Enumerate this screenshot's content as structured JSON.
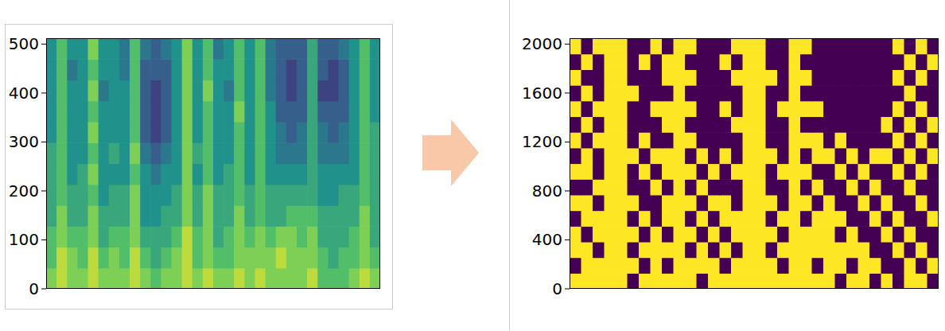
{
  "chart_data": [
    {
      "type": "heatmap",
      "color": "viridis",
      "tick_labels": "y",
      "ylim": [
        0,
        512
      ],
      "yticks": [
        0,
        100,
        200,
        300,
        400,
        500
      ],
      "cells": [
        [
          0.8,
          0.9,
          0.8,
          0.8,
          0.9,
          0.8,
          0.8,
          0.8,
          0.9,
          0.8,
          0.7,
          0.8,
          0.8,
          0.9,
          0.8,
          0.9,
          0.8,
          0.8,
          0.9,
          0.8,
          0.9,
          0.8,
          0.8,
          0.8,
          0.8,
          0.9,
          0.7,
          0.7,
          0.7,
          0.8,
          0.9,
          0.8
        ],
        [
          0.7,
          0.9,
          0.8,
          0.7,
          0.9,
          0.7,
          0.8,
          0.7,
          0.9,
          0.7,
          0.6,
          0.7,
          0.8,
          0.9,
          0.7,
          0.8,
          0.7,
          0.7,
          0.8,
          0.8,
          0.8,
          0.8,
          0.9,
          0.8,
          0.8,
          0.8,
          0.7,
          0.6,
          0.7,
          0.7,
          0.8,
          0.7
        ],
        [
          0.7,
          0.8,
          0.7,
          0.7,
          0.8,
          0.6,
          0.7,
          0.7,
          0.8,
          0.6,
          0.6,
          0.6,
          0.7,
          0.9,
          0.7,
          0.8,
          0.6,
          0.7,
          0.8,
          0.7,
          0.8,
          0.7,
          0.8,
          0.8,
          0.7,
          0.8,
          0.6,
          0.6,
          0.6,
          0.7,
          0.8,
          0.6
        ],
        [
          0.6,
          0.8,
          0.6,
          0.6,
          0.8,
          0.6,
          0.6,
          0.6,
          0.8,
          0.5,
          0.5,
          0.6,
          0.6,
          0.8,
          0.6,
          0.8,
          0.6,
          0.6,
          0.8,
          0.6,
          0.7,
          0.6,
          0.6,
          0.7,
          0.7,
          0.7,
          0.6,
          0.6,
          0.6,
          0.6,
          0.8,
          0.6
        ],
        [
          0.6,
          0.7,
          0.6,
          0.6,
          0.7,
          0.5,
          0.6,
          0.6,
          0.8,
          0.5,
          0.5,
          0.5,
          0.6,
          0.8,
          0.6,
          0.8,
          0.6,
          0.6,
          0.7,
          0.6,
          0.7,
          0.6,
          0.6,
          0.6,
          0.6,
          0.6,
          0.5,
          0.5,
          0.6,
          0.6,
          0.7,
          0.6
        ],
        [
          0.6,
          0.7,
          0.5,
          0.6,
          0.8,
          0.5,
          0.5,
          0.5,
          0.7,
          0.5,
          0.4,
          0.5,
          0.5,
          0.8,
          0.5,
          0.7,
          0.5,
          0.6,
          0.7,
          0.5,
          0.7,
          0.5,
          0.5,
          0.5,
          0.5,
          0.6,
          0.5,
          0.5,
          0.5,
          0.5,
          0.7,
          0.6
        ],
        [
          0.6,
          0.7,
          0.5,
          0.5,
          0.7,
          0.5,
          0.6,
          0.5,
          0.8,
          0.4,
          0.3,
          0.4,
          0.5,
          0.8,
          0.6,
          0.7,
          0.5,
          0.5,
          0.7,
          0.5,
          0.7,
          0.5,
          0.4,
          0.4,
          0.4,
          0.6,
          0.4,
          0.4,
          0.4,
          0.5,
          0.7,
          0.6
        ],
        [
          0.5,
          0.7,
          0.5,
          0.5,
          0.8,
          0.5,
          0.5,
          0.5,
          0.7,
          0.3,
          0.2,
          0.3,
          0.5,
          0.8,
          0.5,
          0.7,
          0.5,
          0.5,
          0.7,
          0.5,
          0.7,
          0.5,
          0.4,
          0.3,
          0.4,
          0.6,
          0.4,
          0.3,
          0.4,
          0.5,
          0.7,
          0.6
        ],
        [
          0.5,
          0.7,
          0.5,
          0.5,
          0.7,
          0.5,
          0.5,
          0.5,
          0.7,
          0.3,
          0.2,
          0.3,
          0.5,
          0.8,
          0.5,
          0.7,
          0.5,
          0.5,
          0.8,
          0.5,
          0.7,
          0.5,
          0.3,
          0.3,
          0.3,
          0.6,
          0.3,
          0.3,
          0.3,
          0.5,
          0.7,
          0.5
        ],
        [
          0.5,
          0.7,
          0.5,
          0.5,
          0.8,
          0.4,
          0.5,
          0.5,
          0.7,
          0.3,
          0.2,
          0.3,
          0.5,
          0.8,
          0.5,
          0.8,
          0.5,
          0.4,
          0.7,
          0.5,
          0.7,
          0.4,
          0.3,
          0.2,
          0.3,
          0.6,
          0.2,
          0.2,
          0.3,
          0.5,
          0.7,
          0.5
        ],
        [
          0.5,
          0.7,
          0.4,
          0.5,
          0.7,
          0.5,
          0.5,
          0.4,
          0.7,
          0.3,
          0.3,
          0.3,
          0.5,
          0.8,
          0.5,
          0.7,
          0.5,
          0.5,
          0.7,
          0.5,
          0.7,
          0.4,
          0.3,
          0.2,
          0.3,
          0.6,
          0.3,
          0.2,
          0.3,
          0.5,
          0.7,
          0.5
        ],
        [
          0.5,
          0.7,
          0.5,
          0.5,
          0.8,
          0.5,
          0.5,
          0.4,
          0.7,
          0.4,
          0.3,
          0.4,
          0.5,
          0.8,
          0.5,
          0.7,
          0.4,
          0.5,
          0.7,
          0.5,
          0.7,
          0.4,
          0.3,
          0.3,
          0.3,
          0.6,
          0.3,
          0.3,
          0.4,
          0.5,
          0.7,
          0.5
        ]
      ]
    },
    {
      "type": "heatmap",
      "color": "viridis",
      "tick_labels": "y",
      "ylim": [
        0,
        2048
      ],
      "yticks": [
        0,
        400,
        800,
        1200,
        1600,
        2000
      ],
      "cells": [
        [
          1,
          1,
          1,
          1,
          1,
          0,
          1,
          1,
          1,
          1,
          1,
          0,
          1,
          1,
          1,
          1,
          1,
          1,
          1,
          1,
          1,
          1,
          1,
          0,
          1,
          1,
          0,
          1,
          0,
          1,
          1,
          0
        ],
        [
          0,
          1,
          1,
          1,
          1,
          1,
          0,
          1,
          0,
          1,
          1,
          1,
          1,
          0,
          1,
          1,
          1,
          1,
          0,
          1,
          1,
          0,
          1,
          1,
          0,
          1,
          1,
          0,
          0,
          1,
          0,
          1
        ],
        [
          1,
          1,
          0,
          1,
          1,
          0,
          1,
          1,
          1,
          1,
          0,
          1,
          0,
          1,
          0,
          1,
          1,
          0,
          1,
          1,
          1,
          1,
          1,
          1,
          1,
          1,
          0,
          0,
          1,
          0,
          1,
          0
        ],
        [
          1,
          0,
          1,
          1,
          1,
          1,
          0,
          1,
          0,
          1,
          1,
          0,
          1,
          0,
          1,
          1,
          1,
          1,
          0,
          1,
          1,
          1,
          1,
          0,
          1,
          0,
          0,
          1,
          0,
          1,
          0,
          0
        ],
        [
          0,
          1,
          1,
          1,
          1,
          0,
          1,
          0,
          1,
          1,
          0,
          1,
          0,
          1,
          1,
          1,
          1,
          0,
          1,
          1,
          0,
          1,
          1,
          1,
          0,
          0,
          1,
          0,
          1,
          0,
          0,
          1
        ],
        [
          1,
          1,
          0,
          1,
          1,
          1,
          0,
          0,
          1,
          1,
          1,
          0,
          1,
          1,
          0,
          1,
          1,
          1,
          0,
          1,
          1,
          0,
          1,
          0,
          0,
          1,
          0,
          1,
          0,
          0,
          1,
          0
        ],
        [
          0,
          0,
          1,
          1,
          1,
          0,
          0,
          1,
          0,
          1,
          0,
          1,
          0,
          0,
          0,
          1,
          1,
          0,
          0,
          1,
          0,
          1,
          0,
          0,
          1,
          0,
          1,
          0,
          0,
          1,
          0,
          0
        ],
        [
          1,
          1,
          0,
          1,
          1,
          0,
          1,
          0,
          1,
          1,
          1,
          0,
          1,
          0,
          1,
          1,
          1,
          0,
          1,
          1,
          1,
          0,
          0,
          1,
          0,
          1,
          0,
          0,
          1,
          0,
          1,
          0
        ],
        [
          0,
          1,
          0,
          1,
          1,
          1,
          0,
          1,
          1,
          1,
          0,
          1,
          0,
          1,
          0,
          1,
          1,
          1,
          0,
          1,
          0,
          1,
          1,
          0,
          1,
          0,
          1,
          1,
          0,
          1,
          0,
          1
        ],
        [
          1,
          0,
          1,
          1,
          1,
          0,
          1,
          0,
          0,
          1,
          1,
          0,
          0,
          0,
          0,
          1,
          1,
          0,
          0,
          1,
          1,
          1,
          0,
          1,
          0,
          0,
          0,
          0,
          1,
          0,
          1,
          0
        ],
        [
          0,
          1,
          0,
          1,
          1,
          0,
          0,
          0,
          1,
          1,
          0,
          0,
          0,
          0,
          1,
          1,
          1,
          0,
          0,
          1,
          0,
          0,
          0,
          0,
          0,
          0,
          0,
          1,
          0,
          1,
          0,
          1
        ],
        [
          1,
          0,
          1,
          1,
          1,
          0,
          0,
          1,
          1,
          1,
          1,
          0,
          0,
          1,
          0,
          1,
          1,
          0,
          1,
          1,
          1,
          1,
          0,
          0,
          0,
          0,
          0,
          0,
          1,
          0,
          1,
          0
        ],
        [
          0,
          1,
          0,
          1,
          1,
          1,
          0,
          0,
          0,
          1,
          0,
          0,
          0,
          0,
          0,
          1,
          1,
          0,
          0,
          1,
          0,
          0,
          0,
          0,
          0,
          0,
          0,
          0,
          0,
          1,
          0,
          0
        ],
        [
          1,
          0,
          0,
          1,
          1,
          0,
          0,
          0,
          1,
          1,
          1,
          0,
          0,
          0,
          1,
          1,
          1,
          1,
          0,
          1,
          1,
          0,
          0,
          0,
          0,
          0,
          0,
          0,
          1,
          0,
          1,
          0
        ],
        [
          0,
          1,
          0,
          1,
          1,
          0,
          1,
          0,
          1,
          1,
          0,
          0,
          0,
          1,
          0,
          1,
          1,
          0,
          0,
          1,
          0,
          0,
          0,
          0,
          0,
          0,
          0,
          0,
          0,
          1,
          0,
          1
        ],
        [
          1,
          0,
          1,
          1,
          1,
          0,
          0,
          1,
          0,
          1,
          1,
          0,
          0,
          0,
          1,
          1,
          1,
          0,
          0,
          1,
          1,
          0,
          0,
          0,
          0,
          0,
          0,
          0,
          1,
          0,
          1,
          0
        ]
      ]
    }
  ]
}
